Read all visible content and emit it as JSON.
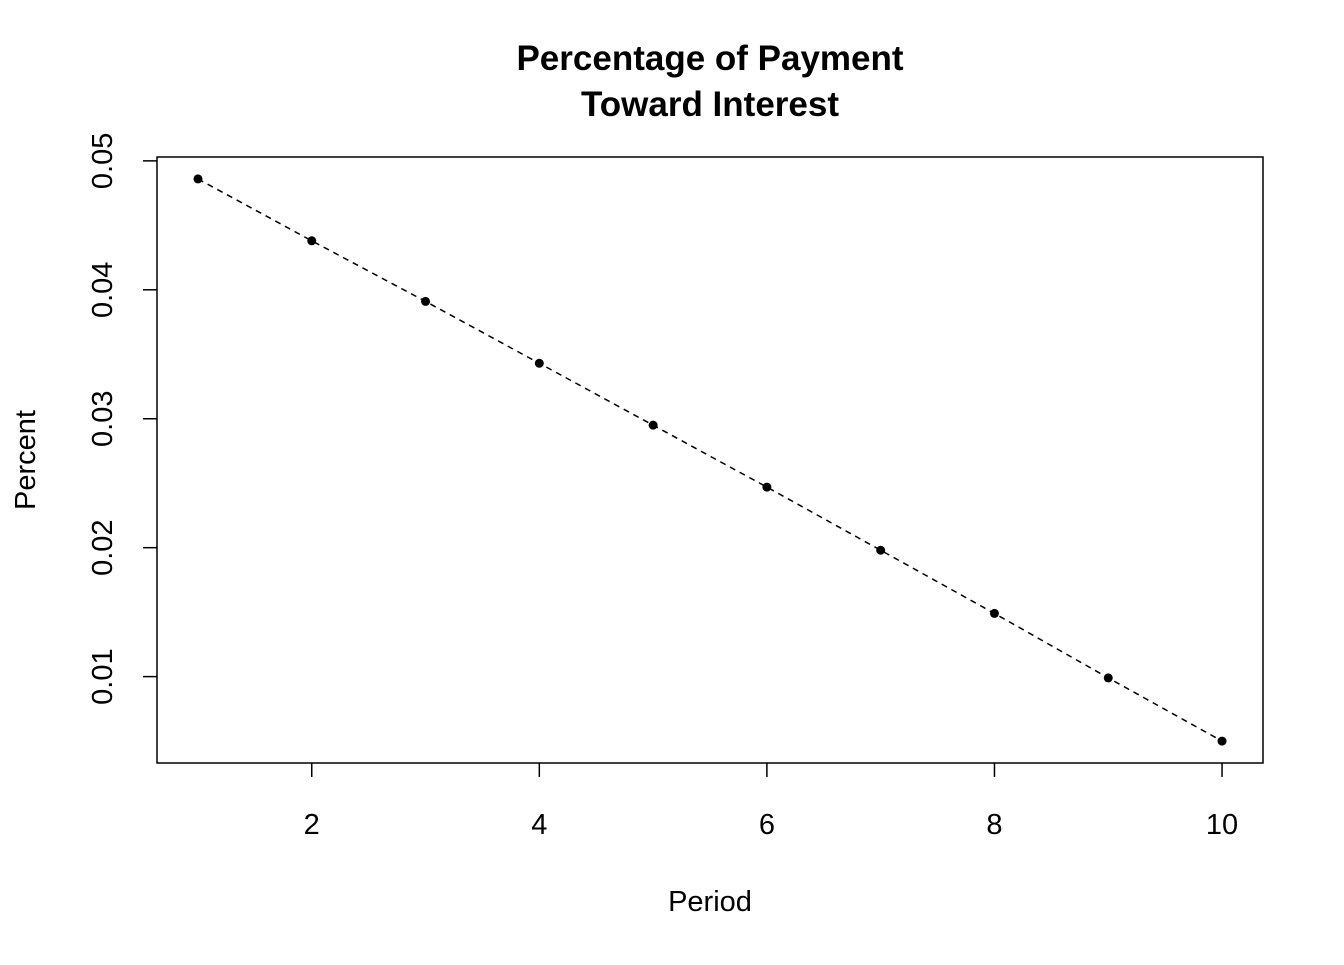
{
  "chart_data": {
    "type": "line",
    "title_lines": [
      "Percentage of Payment",
      "Toward Interest"
    ],
    "xlabel": "Period",
    "ylabel": "Percent",
    "x": [
      1,
      2,
      3,
      4,
      5,
      6,
      7,
      8,
      9,
      10
    ],
    "y": [
      0.0486,
      0.0438,
      0.0391,
      0.0343,
      0.0295,
      0.0247,
      0.0198,
      0.0149,
      0.0099,
      0.005
    ],
    "line_style": "dashed",
    "marker": "filled-circle",
    "xlim": [
      0.64,
      10.36
    ],
    "ylim": [
      0.0033,
      0.0503
    ],
    "x_ticks": [
      2,
      4,
      6,
      8,
      10
    ],
    "x_tick_labels": [
      "2",
      "4",
      "6",
      "8",
      "10"
    ],
    "y_ticks": [
      0.01,
      0.02,
      0.03,
      0.04,
      0.05
    ],
    "y_tick_labels": [
      "0.01",
      "0.02",
      "0.03",
      "0.04",
      "0.05"
    ],
    "grid": false,
    "color": "#000000"
  }
}
